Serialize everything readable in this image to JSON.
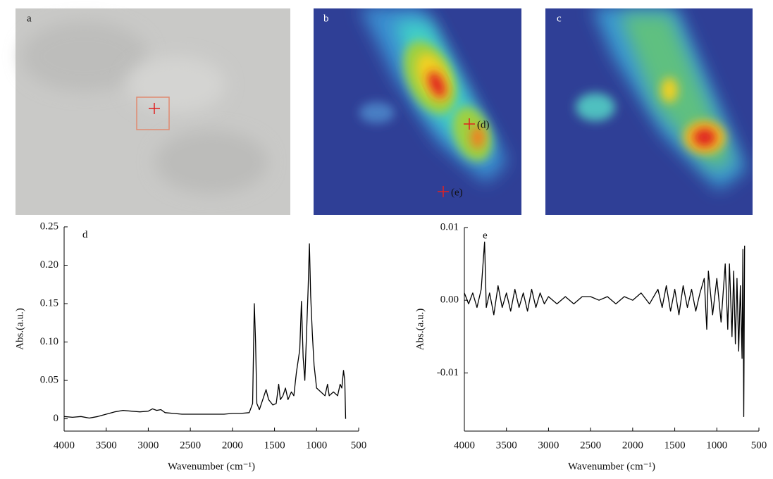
{
  "images": [
    {
      "label": "a"
    },
    {
      "label": "b",
      "markers": [
        "(d)",
        "(e)"
      ]
    },
    {
      "label": "c"
    }
  ],
  "chart_data": [
    {
      "type": "line",
      "label": "d",
      "xlabel": "Wavenumber (cm⁻¹)",
      "ylabel": "Abs.(a.u.)",
      "color": "#000000",
      "xlim": [
        4000,
        500
      ],
      "xticks": [
        4000,
        3500,
        3000,
        2500,
        2000,
        1500,
        1000,
        500
      ],
      "ylim": [
        -0.016,
        0.25
      ],
      "yticks": [
        0,
        0.05,
        {
          "value": 0.1,
          "label": "0.10"
        },
        0.15,
        {
          "value": 0.2,
          "label": "0.20"
        },
        0.25
      ],
      "x": [
        4000,
        3900,
        3800,
        3700,
        3600,
        3500,
        3400,
        3300,
        3200,
        3100,
        3000,
        2950,
        2900,
        2850,
        2800,
        2700,
        2600,
        2500,
        2400,
        2300,
        2200,
        2100,
        2000,
        1900,
        1800,
        1760,
        1740,
        1725,
        1710,
        1680,
        1640,
        1600,
        1570,
        1520,
        1480,
        1450,
        1430,
        1400,
        1370,
        1340,
        1300,
        1270,
        1240,
        1200,
        1180,
        1160,
        1140,
        1120,
        1100,
        1085,
        1070,
        1050,
        1030,
        1000,
        950,
        900,
        870,
        850,
        800,
        750,
        720,
        700,
        680,
        665,
        655
      ],
      "values": [
        0.003,
        0.002,
        0.003,
        0.001,
        0.003,
        0.006,
        0.009,
        0.011,
        0.01,
        0.009,
        0.01,
        0.013,
        0.011,
        0.012,
        0.008,
        0.007,
        0.006,
        0.006,
        0.006,
        0.006,
        0.006,
        0.006,
        0.007,
        0.007,
        0.008,
        0.02,
        0.15,
        0.1,
        0.02,
        0.012,
        0.025,
        0.038,
        0.025,
        0.018,
        0.02,
        0.045,
        0.025,
        0.03,
        0.04,
        0.025,
        0.035,
        0.03,
        0.06,
        0.09,
        0.153,
        0.08,
        0.05,
        0.11,
        0.17,
        0.228,
        0.16,
        0.11,
        0.07,
        0.04,
        0.035,
        0.03,
        0.045,
        0.03,
        0.035,
        0.03,
        0.045,
        0.04,
        0.063,
        0.05,
        0.0
      ]
    },
    {
      "type": "line",
      "label": "e",
      "xlabel": "Wavenumber (cm⁻¹)",
      "ylabel": "Abs.(a.u.)",
      "color": "#000000",
      "xlim": [
        4000,
        500
      ],
      "xticks": [
        4000,
        3500,
        3000,
        2500,
        2000,
        1500,
        1000,
        500
      ],
      "ylim": [
        -0.018,
        0.01
      ],
      "yticks": [
        -0.01,
        {
          "value": 0,
          "label": "0.00"
        },
        0.01
      ],
      "x": [
        4000,
        3950,
        3900,
        3850,
        3800,
        3760,
        3740,
        3700,
        3650,
        3600,
        3550,
        3500,
        3450,
        3400,
        3350,
        3300,
        3250,
        3200,
        3150,
        3100,
        3050,
        3000,
        2900,
        2800,
        2700,
        2600,
        2500,
        2400,
        2300,
        2200,
        2100,
        2000,
        1900,
        1800,
        1700,
        1650,
        1600,
        1550,
        1500,
        1450,
        1400,
        1350,
        1300,
        1250,
        1200,
        1150,
        1120,
        1100,
        1050,
        1000,
        950,
        900,
        870,
        850,
        820,
        800,
        780,
        760,
        740,
        720,
        700,
        690,
        680,
        670
      ],
      "values": [
        0.001,
        -0.0005,
        0.001,
        -0.001,
        0.0015,
        0.008,
        -0.001,
        0.001,
        -0.002,
        0.002,
        -0.001,
        0.001,
        -0.0015,
        0.0015,
        -0.001,
        0.001,
        -0.0015,
        0.0015,
        -0.001,
        0.001,
        -0.0005,
        0.0005,
        -0.0005,
        0.0005,
        -0.0005,
        0.0005,
        0.0005,
        0.0,
        0.0005,
        -0.0005,
        0.0005,
        0.0,
        0.001,
        -0.0005,
        0.0015,
        -0.001,
        0.002,
        -0.0015,
        0.0015,
        -0.002,
        0.002,
        -0.001,
        0.0015,
        -0.0015,
        0.001,
        0.003,
        -0.004,
        0.004,
        -0.002,
        0.003,
        -0.003,
        0.005,
        -0.004,
        0.005,
        -0.005,
        0.004,
        -0.006,
        0.003,
        -0.007,
        0.002,
        -0.008,
        0.007,
        -0.016,
        0.0075
      ]
    }
  ]
}
